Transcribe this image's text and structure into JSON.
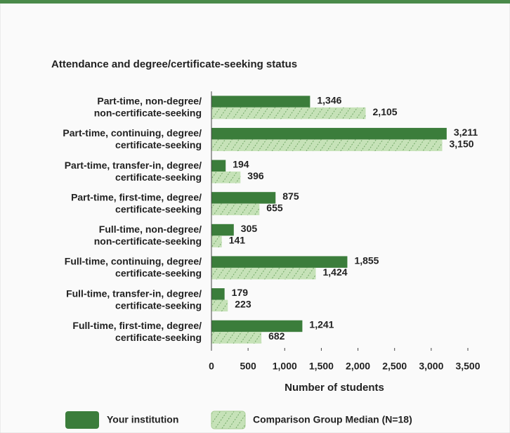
{
  "chart_data": {
    "type": "barh",
    "title": "Attendance and degree/certificate-seeking status",
    "xlabel": "Number of students",
    "categories": [
      [
        "Part-time, non-degree/",
        "non-certificate-seeking"
      ],
      [
        "Part-time, continuing, degree/",
        "certificate-seeking"
      ],
      [
        "Part-time, transfer-in, degree/",
        "certificate-seeking"
      ],
      [
        "Part-time, first-time, degree/",
        "certificate-seeking"
      ],
      [
        "Full-time, non-degree/",
        "non-certificate-seeking"
      ],
      [
        "Full-time, continuing, degree/",
        "certificate-seeking"
      ],
      [
        "Full-time, transfer-in, degree/",
        "certificate-seeking"
      ],
      [
        "Full-time, first-time, degree/",
        "certificate-seeking"
      ]
    ],
    "series": [
      {
        "name": "Your institution",
        "color": "#3b7d3b",
        "values": [
          1346,
          3211,
          194,
          875,
          305,
          1855,
          179,
          1241
        ],
        "value_labels": [
          "1,346",
          "3,211",
          "194",
          "875",
          "305",
          "1,855",
          "179",
          "1,241"
        ]
      },
      {
        "name": "Comparison Group Median (N=18)",
        "color": "#c6e2b8",
        "values": [
          2105,
          3150,
          396,
          655,
          141,
          1424,
          223,
          682
        ],
        "value_labels": [
          "2,105",
          "3,150",
          "396",
          "655",
          "141",
          "1,424",
          "223",
          "682"
        ]
      }
    ],
    "xlim": [
      0,
      3500
    ],
    "xticks": [
      0,
      500,
      {
        "value": 1000,
        "label": "1,000"
      },
      {
        "value": 1500,
        "label": "1,500"
      },
      {
        "value": 2000,
        "label": "2,000"
      },
      {
        "value": 2500,
        "label": "2,500"
      },
      {
        "value": 3000,
        "label": "3,000"
      },
      {
        "value": 3500,
        "label": "3,500"
      }
    ],
    "legend": "bottom"
  }
}
